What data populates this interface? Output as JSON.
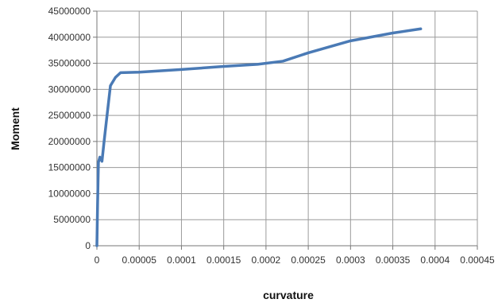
{
  "chart_data": {
    "type": "line",
    "title": "",
    "xlabel": "curvature",
    "ylabel": "Moment",
    "xlim": [
      0,
      0.00045
    ],
    "ylim": [
      0,
      45000000
    ],
    "x_ticks": [
      "0",
      "0.00005",
      "0.0001",
      "0.00015",
      "0.0002",
      "0.00025",
      "0.0003",
      "0.00035",
      "0.0004",
      "0.00045"
    ],
    "y_ticks": [
      "0",
      "5000000",
      "10000000",
      "15000000",
      "20000000",
      "25000000",
      "30000000",
      "35000000",
      "40000000",
      "45000000"
    ],
    "grid": true,
    "legend": "none",
    "series": [
      {
        "color": "#4a7ab5",
        "x": [
          0,
          8e-07,
          1.8e-06,
          3.5e-06,
          6e-06,
          8.5e-06,
          1.2e-05,
          1.6e-05,
          2.2e-05,
          2.8e-05,
          5e-05,
          0.0001,
          0.00015,
          0.00019,
          0.00022,
          0.00025,
          0.0003,
          0.00035,
          0.000383
        ],
        "y": [
          0,
          8000000,
          16000000,
          17000000,
          16200000,
          20000000,
          25000000,
          30700000,
          32300000,
          33200000,
          33300000,
          33800000,
          34400000,
          34800000,
          35400000,
          37000000,
          39300000,
          40800000,
          41600000
        ]
      }
    ]
  }
}
